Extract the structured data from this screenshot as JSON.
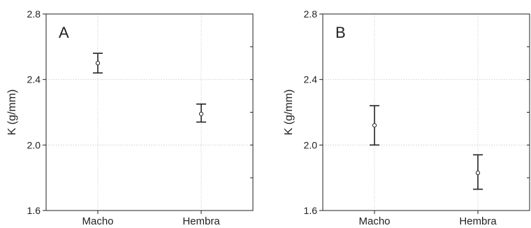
{
  "chart_data": [
    {
      "type": "errorbar",
      "panel_label": "A",
      "ylabel": "K (g/mm)",
      "xlabel": "",
      "categories": [
        "Macho",
        "Hembra"
      ],
      "mean": [
        2.5,
        2.19
      ],
      "lower": [
        2.44,
        2.14
      ],
      "upper": [
        2.56,
        2.25
      ],
      "ylim": [
        1.6,
        2.8
      ],
      "yticks": [
        "1.6",
        "2.0",
        "2.4",
        "2.8"
      ],
      "grid": true,
      "legend": "none"
    },
    {
      "type": "errorbar",
      "panel_label": "B",
      "ylabel": "K (g/mm)",
      "xlabel": "",
      "categories": [
        "Macho",
        "Hembra"
      ],
      "mean": [
        2.12,
        1.83
      ],
      "lower": [
        2.0,
        1.73
      ],
      "upper": [
        2.24,
        1.94
      ],
      "ylim": [
        1.6,
        2.8
      ],
      "yticks": [
        "1.6",
        "2.0",
        "2.4",
        "2.8"
      ],
      "grid": true,
      "legend": "none"
    }
  ],
  "colors": {
    "axis": "#222222",
    "grid": "#c8c8c8",
    "errorbar": "#222222",
    "marker_fill": "#ffffff"
  }
}
